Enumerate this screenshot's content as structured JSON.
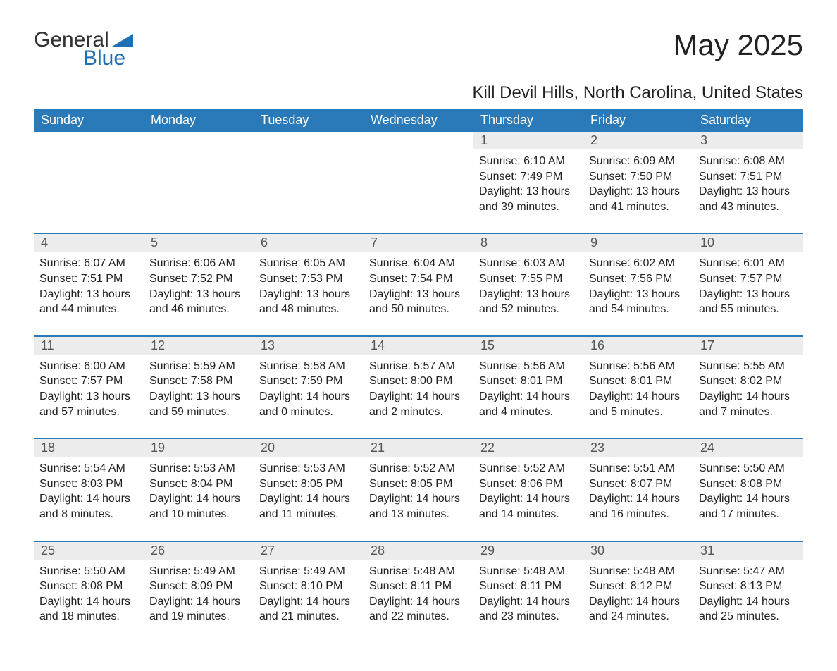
{
  "branding": {
    "name1": "General",
    "name2": "Blue",
    "logo_color": "#1f6fb2",
    "text_color": "#333333"
  },
  "header": {
    "month_title": "May 2025",
    "location": "Kill Devil Hills, North Carolina, United States"
  },
  "calendar": {
    "header_bg": "#2a7ab9",
    "header_fg": "#ffffff",
    "daynum_bg": "#ececec",
    "row_border": "#2a7ab9",
    "day_names": [
      "Sunday",
      "Monday",
      "Tuesday",
      "Wednesday",
      "Thursday",
      "Friday",
      "Saturday"
    ],
    "weeks": [
      [
        {
          "empty": true
        },
        {
          "empty": true
        },
        {
          "empty": true
        },
        {
          "empty": true
        },
        {
          "day": "1",
          "sunrise": "Sunrise: 6:10 AM",
          "sunset": "Sunset: 7:49 PM",
          "daylight": "Daylight: 13 hours and 39 minutes."
        },
        {
          "day": "2",
          "sunrise": "Sunrise: 6:09 AM",
          "sunset": "Sunset: 7:50 PM",
          "daylight": "Daylight: 13 hours and 41 minutes."
        },
        {
          "day": "3",
          "sunrise": "Sunrise: 6:08 AM",
          "sunset": "Sunset: 7:51 PM",
          "daylight": "Daylight: 13 hours and 43 minutes."
        }
      ],
      [
        {
          "day": "4",
          "sunrise": "Sunrise: 6:07 AM",
          "sunset": "Sunset: 7:51 PM",
          "daylight": "Daylight: 13 hours and 44 minutes."
        },
        {
          "day": "5",
          "sunrise": "Sunrise: 6:06 AM",
          "sunset": "Sunset: 7:52 PM",
          "daylight": "Daylight: 13 hours and 46 minutes."
        },
        {
          "day": "6",
          "sunrise": "Sunrise: 6:05 AM",
          "sunset": "Sunset: 7:53 PM",
          "daylight": "Daylight: 13 hours and 48 minutes."
        },
        {
          "day": "7",
          "sunrise": "Sunrise: 6:04 AM",
          "sunset": "Sunset: 7:54 PM",
          "daylight": "Daylight: 13 hours and 50 minutes."
        },
        {
          "day": "8",
          "sunrise": "Sunrise: 6:03 AM",
          "sunset": "Sunset: 7:55 PM",
          "daylight": "Daylight: 13 hours and 52 minutes."
        },
        {
          "day": "9",
          "sunrise": "Sunrise: 6:02 AM",
          "sunset": "Sunset: 7:56 PM",
          "daylight": "Daylight: 13 hours and 54 minutes."
        },
        {
          "day": "10",
          "sunrise": "Sunrise: 6:01 AM",
          "sunset": "Sunset: 7:57 PM",
          "daylight": "Daylight: 13 hours and 55 minutes."
        }
      ],
      [
        {
          "day": "11",
          "sunrise": "Sunrise: 6:00 AM",
          "sunset": "Sunset: 7:57 PM",
          "daylight": "Daylight: 13 hours and 57 minutes."
        },
        {
          "day": "12",
          "sunrise": "Sunrise: 5:59 AM",
          "sunset": "Sunset: 7:58 PM",
          "daylight": "Daylight: 13 hours and 59 minutes."
        },
        {
          "day": "13",
          "sunrise": "Sunrise: 5:58 AM",
          "sunset": "Sunset: 7:59 PM",
          "daylight": "Daylight: 14 hours and 0 minutes."
        },
        {
          "day": "14",
          "sunrise": "Sunrise: 5:57 AM",
          "sunset": "Sunset: 8:00 PM",
          "daylight": "Daylight: 14 hours and 2 minutes."
        },
        {
          "day": "15",
          "sunrise": "Sunrise: 5:56 AM",
          "sunset": "Sunset: 8:01 PM",
          "daylight": "Daylight: 14 hours and 4 minutes."
        },
        {
          "day": "16",
          "sunrise": "Sunrise: 5:56 AM",
          "sunset": "Sunset: 8:01 PM",
          "daylight": "Daylight: 14 hours and 5 minutes."
        },
        {
          "day": "17",
          "sunrise": "Sunrise: 5:55 AM",
          "sunset": "Sunset: 8:02 PM",
          "daylight": "Daylight: 14 hours and 7 minutes."
        }
      ],
      [
        {
          "day": "18",
          "sunrise": "Sunrise: 5:54 AM",
          "sunset": "Sunset: 8:03 PM",
          "daylight": "Daylight: 14 hours and 8 minutes."
        },
        {
          "day": "19",
          "sunrise": "Sunrise: 5:53 AM",
          "sunset": "Sunset: 8:04 PM",
          "daylight": "Daylight: 14 hours and 10 minutes."
        },
        {
          "day": "20",
          "sunrise": "Sunrise: 5:53 AM",
          "sunset": "Sunset: 8:05 PM",
          "daylight": "Daylight: 14 hours and 11 minutes."
        },
        {
          "day": "21",
          "sunrise": "Sunrise: 5:52 AM",
          "sunset": "Sunset: 8:05 PM",
          "daylight": "Daylight: 14 hours and 13 minutes."
        },
        {
          "day": "22",
          "sunrise": "Sunrise: 5:52 AM",
          "sunset": "Sunset: 8:06 PM",
          "daylight": "Daylight: 14 hours and 14 minutes."
        },
        {
          "day": "23",
          "sunrise": "Sunrise: 5:51 AM",
          "sunset": "Sunset: 8:07 PM",
          "daylight": "Daylight: 14 hours and 16 minutes."
        },
        {
          "day": "24",
          "sunrise": "Sunrise: 5:50 AM",
          "sunset": "Sunset: 8:08 PM",
          "daylight": "Daylight: 14 hours and 17 minutes."
        }
      ],
      [
        {
          "day": "25",
          "sunrise": "Sunrise: 5:50 AM",
          "sunset": "Sunset: 8:08 PM",
          "daylight": "Daylight: 14 hours and 18 minutes."
        },
        {
          "day": "26",
          "sunrise": "Sunrise: 5:49 AM",
          "sunset": "Sunset: 8:09 PM",
          "daylight": "Daylight: 14 hours and 19 minutes."
        },
        {
          "day": "27",
          "sunrise": "Sunrise: 5:49 AM",
          "sunset": "Sunset: 8:10 PM",
          "daylight": "Daylight: 14 hours and 21 minutes."
        },
        {
          "day": "28",
          "sunrise": "Sunrise: 5:48 AM",
          "sunset": "Sunset: 8:11 PM",
          "daylight": "Daylight: 14 hours and 22 minutes."
        },
        {
          "day": "29",
          "sunrise": "Sunrise: 5:48 AM",
          "sunset": "Sunset: 8:11 PM",
          "daylight": "Daylight: 14 hours and 23 minutes."
        },
        {
          "day": "30",
          "sunrise": "Sunrise: 5:48 AM",
          "sunset": "Sunset: 8:12 PM",
          "daylight": "Daylight: 14 hours and 24 minutes."
        },
        {
          "day": "31",
          "sunrise": "Sunrise: 5:47 AM",
          "sunset": "Sunset: 8:13 PM",
          "daylight": "Daylight: 14 hours and 25 minutes."
        }
      ]
    ]
  }
}
